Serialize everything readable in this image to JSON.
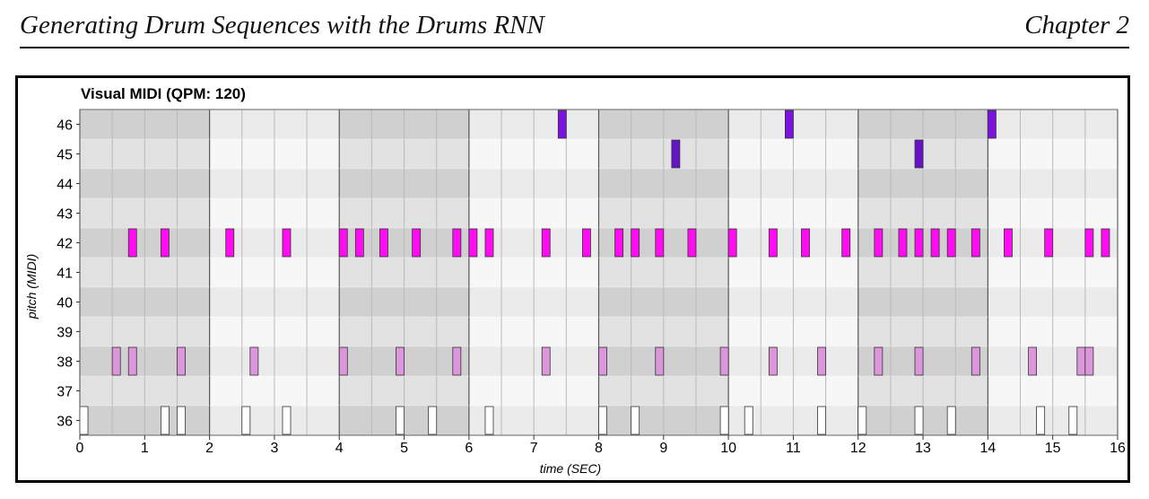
{
  "page_header": {
    "title": "Generating Drum Sequences with the Drums RNN",
    "chapter": "Chapter 2"
  },
  "chart_data": {
    "type": "pianoroll",
    "title": "Visual MIDI (QPM: 120)",
    "xlabel": "time (SEC)",
    "ylabel": "pitch (MIDI)",
    "xlim": [
      0,
      16
    ],
    "ylim": [
      36,
      46
    ],
    "x_ticks": [
      0,
      1,
      2,
      3,
      4,
      5,
      6,
      7,
      8,
      9,
      10,
      11,
      12,
      13,
      14,
      15,
      16
    ],
    "y_ticks": [
      36,
      37,
      38,
      39,
      40,
      41,
      42,
      43,
      44,
      45,
      46
    ],
    "beat_seconds": 0.5,
    "bar_seconds": 2,
    "colors": {
      "46": "#7c12e0",
      "45": "#6514c8",
      "42": "#ff0cf2",
      "38": "#dc96dc",
      "36": "#ffffff"
    },
    "note_duration": 0.125,
    "notes": {
      "46": [
        7.375,
        10.875,
        14.0
      ],
      "45": [
        9.125,
        12.875
      ],
      "42": [
        0.75,
        1.25,
        2.25,
        3.125,
        4.0,
        4.25,
        4.625,
        5.125,
        5.75,
        6.0,
        6.25,
        7.125,
        7.75,
        8.25,
        8.5,
        8.875,
        9.375,
        10.0,
        10.625,
        11.125,
        11.75,
        12.25,
        12.625,
        12.875,
        13.125,
        13.375,
        13.75,
        14.25,
        14.875,
        15.5,
        15.75
      ],
      "38": [
        0.5,
        0.75,
        1.5,
        2.625,
        4.0,
        4.875,
        5.75,
        7.125,
        8.0,
        8.875,
        9.875,
        10.625,
        11.375,
        12.25,
        12.875,
        13.75,
        14.625,
        15.375,
        15.5
      ],
      "36": [
        0.0,
        1.25,
        1.5,
        2.5,
        3.125,
        4.875,
        5.375,
        6.25,
        8.0,
        8.5,
        9.875,
        10.25,
        11.375,
        12.0,
        12.875,
        13.375,
        14.75,
        15.25
      ]
    }
  }
}
